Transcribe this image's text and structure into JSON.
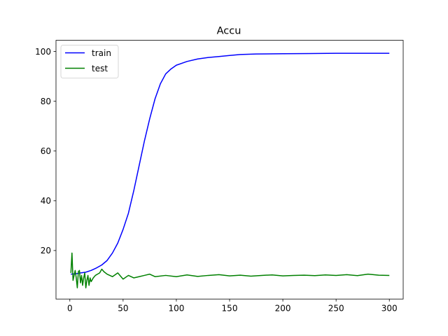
{
  "chart_data": {
    "type": "line",
    "title": "Accu",
    "xlabel": "",
    "ylabel": "",
    "xlim": [
      -13,
      313
    ],
    "ylim": [
      0.5,
      104.5
    ],
    "xticks": [
      0,
      50,
      100,
      150,
      200,
      250,
      300
    ],
    "yticks": [
      20,
      40,
      60,
      80,
      100
    ],
    "grid": false,
    "legend": "top-left",
    "series": [
      {
        "name": "train",
        "color": "#0000ff",
        "x": [
          1,
          5,
          10,
          15,
          20,
          25,
          30,
          35,
          40,
          45,
          50,
          55,
          60,
          65,
          70,
          75,
          80,
          85,
          90,
          95,
          100,
          110,
          120,
          130,
          140,
          150,
          160,
          175,
          200,
          225,
          250,
          275,
          300
        ],
        "y": [
          10.5,
          10.6,
          11,
          11.3,
          12,
          13,
          14.2,
          16,
          19,
          23,
          28.5,
          35,
          44,
          54,
          64,
          73,
          81,
          87,
          91,
          93,
          94.5,
          96,
          97,
          97.6,
          98,
          98.4,
          98.8,
          99,
          99.1,
          99.2,
          99.3,
          99.3,
          99.3
        ]
      },
      {
        "name": "test",
        "color": "#008000",
        "x": [
          1,
          2,
          3,
          4,
          5,
          6,
          7,
          8,
          9,
          10,
          11,
          12,
          13,
          14,
          15,
          16,
          17,
          18,
          19,
          20,
          22,
          24,
          26,
          28,
          30,
          32,
          35,
          40,
          45,
          50,
          55,
          60,
          65,
          70,
          75,
          80,
          90,
          100,
          110,
          120,
          130,
          140,
          150,
          160,
          170,
          180,
          190,
          200,
          210,
          220,
          230,
          240,
          250,
          260,
          270,
          280,
          290,
          300
        ],
        "y": [
          11,
          19,
          8,
          10,
          12,
          9,
          5,
          11.5,
          12,
          7,
          10,
          6,
          9,
          11,
          5,
          8,
          10,
          6,
          9,
          7.5,
          9,
          10,
          10.5,
          11,
          12.5,
          11.5,
          10.5,
          9.5,
          11,
          8.5,
          10,
          9,
          9.5,
          10,
          10.5,
          9.5,
          10,
          9.5,
          10.2,
          9.6,
          10,
          10.3,
          9.8,
          10.1,
          9.7,
          10,
          10.2,
          9.8,
          10,
          10.1,
          9.9,
          10.2,
          10,
          10.3,
          9.9,
          10.5,
          10.1,
          10
        ]
      }
    ]
  }
}
